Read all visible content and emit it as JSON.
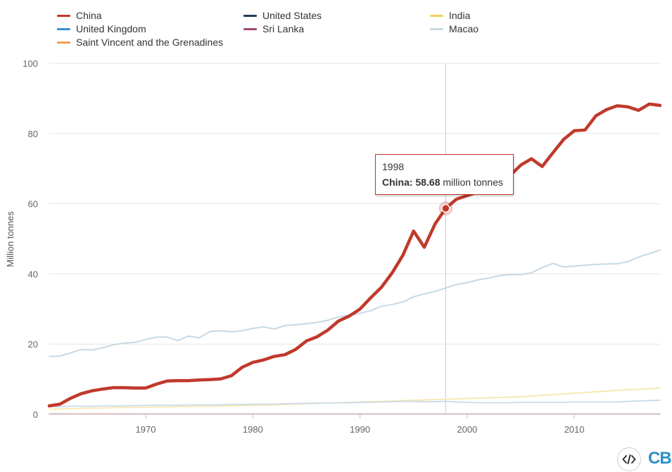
{
  "chart_data": {
    "type": "line",
    "ylabel": "Million tonnes",
    "ylim": [
      0,
      100
    ],
    "yticks": [
      "0",
      "20",
      "40",
      "60",
      "80",
      "100"
    ],
    "xlim": [
      1961,
      2018
    ],
    "xticks": [
      "1970",
      "1980",
      "1990",
      "2000",
      "2010"
    ],
    "x": [
      1961,
      1962,
      1963,
      1964,
      1965,
      1966,
      1967,
      1968,
      1969,
      1970,
      1971,
      1972,
      1973,
      1974,
      1975,
      1976,
      1977,
      1978,
      1979,
      1980,
      1981,
      1982,
      1983,
      1984,
      1985,
      1986,
      1987,
      1988,
      1989,
      1990,
      1991,
      1992,
      1993,
      1994,
      1995,
      1996,
      1997,
      1998,
      1999,
      2000,
      2001,
      2002,
      2003,
      2004,
      2005,
      2006,
      2007,
      2008,
      2009,
      2010,
      2011,
      2012,
      2013,
      2014,
      2015,
      2016,
      2017,
      2018
    ],
    "series": [
      {
        "name": "Macao",
        "color": "#c6d9e4",
        "width": 2,
        "values": [
          16.5,
          16.6,
          17.5,
          18.5,
          18.3,
          19.0,
          19.8,
          20.3,
          20.5,
          21.3,
          22.0,
          22.0,
          21.0,
          22.3,
          21.8,
          23.6,
          23.8,
          23.5,
          23.8,
          24.5,
          24.9,
          24.3,
          25.3,
          25.5,
          25.8,
          26.2,
          26.8,
          27.8,
          28.2,
          28.8,
          29.5,
          30.8,
          31.3,
          32.0,
          33.5,
          34.3,
          35.0,
          36.0,
          37.0,
          37.5,
          38.3,
          38.8,
          39.5,
          39.8,
          39.8,
          40.3,
          41.8,
          43.0,
          42.0,
          42.2,
          42.5,
          42.7,
          42.8,
          42.9,
          43.5,
          44.8,
          45.8,
          46.8
        ]
      },
      {
        "name": "India",
        "color": "#f7e7b0",
        "width": 1.8,
        "values": [
          1.5,
          1.5,
          1.6,
          1.7,
          1.8,
          1.8,
          1.9,
          1.9,
          2.0,
          2.0,
          2.1,
          2.1,
          2.2,
          2.2,
          2.3,
          2.3,
          2.4,
          2.4,
          2.5,
          2.5,
          2.6,
          2.7,
          2.8,
          2.9,
          3.0,
          3.1,
          3.2,
          3.3,
          3.4,
          3.5,
          3.6,
          3.7,
          3.8,
          3.9,
          4.0,
          4.1,
          4.2,
          4.3,
          4.4,
          4.5,
          4.6,
          4.7,
          4.8,
          4.9,
          5.0,
          5.2,
          5.4,
          5.6,
          5.8,
          6.0,
          6.2,
          6.4,
          6.6,
          6.8,
          7.0,
          7.1,
          7.3,
          7.5
        ]
      },
      {
        "name": "United Kingdom",
        "color": "#c8dceb",
        "width": 1.8,
        "values": [
          2.2,
          2.2,
          2.3,
          2.3,
          2.3,
          2.4,
          2.4,
          2.4,
          2.5,
          2.5,
          2.6,
          2.6,
          2.6,
          2.7,
          2.7,
          2.7,
          2.7,
          2.8,
          2.8,
          2.9,
          2.9,
          2.9,
          3.0,
          3.1,
          3.1,
          3.2,
          3.2,
          3.3,
          3.3,
          3.4,
          3.4,
          3.5,
          3.6,
          3.7,
          3.7,
          3.6,
          3.6,
          3.7,
          3.5,
          3.4,
          3.3,
          3.3,
          3.3,
          3.3,
          3.4,
          3.4,
          3.4,
          3.4,
          3.4,
          3.5,
          3.5,
          3.5,
          3.5,
          3.5,
          3.7,
          3.8,
          3.9,
          4.0
        ]
      },
      {
        "name": "Saint Vincent and the Grenadines",
        "color": "#f5dcc0",
        "width": 1.5,
        "values": [
          0.2,
          0.2,
          0.2,
          0.2,
          0.2,
          0.2,
          0.2,
          0.2,
          0.2,
          0.2,
          0.2,
          0.2,
          0.2,
          0.2,
          0.2,
          0.2,
          0.2,
          0.2,
          0.2,
          0.2,
          0.2,
          0.2,
          0.2,
          0.2,
          0.2,
          0.2,
          0.2,
          0.2,
          0.2,
          0.2,
          0.2,
          0.2,
          0.2,
          0.2,
          0.2,
          0.2,
          0.2,
          0.2,
          0.2,
          0.2,
          0.2,
          0.2,
          0.2,
          0.2,
          0.2,
          0.2,
          0.2,
          0.2,
          0.2,
          0.2,
          0.2,
          0.2,
          0.2,
          0.2,
          0.2,
          0.2,
          0.2,
          0.2
        ]
      },
      {
        "name": "United States",
        "color": "#b9c6d3",
        "width": 1.5,
        "values": [
          0.1,
          0.1,
          0.1,
          0.1,
          0.1,
          0.1,
          0.1,
          0.1,
          0.1,
          0.1,
          0.1,
          0.1,
          0.1,
          0.1,
          0.1,
          0.1,
          0.1,
          0.1,
          0.1,
          0.1,
          0.1,
          0.1,
          0.1,
          0.1,
          0.1,
          0.1,
          0.1,
          0.1,
          0.1,
          0.1,
          0.1,
          0.1,
          0.1,
          0.1,
          0.1,
          0.1,
          0.1,
          0.1,
          0.1,
          0.1,
          0.1,
          0.1,
          0.1,
          0.1,
          0.1,
          0.1,
          0.1,
          0.1,
          0.1,
          0.1,
          0.1,
          0.1,
          0.1,
          0.1,
          0.1,
          0.1,
          0.1,
          0.1
        ]
      },
      {
        "name": "Sri Lanka",
        "color": "#d8b9c6",
        "width": 1.5,
        "values": [
          0.05,
          0.05,
          0.05,
          0.05,
          0.05,
          0.05,
          0.05,
          0.05,
          0.05,
          0.05,
          0.05,
          0.05,
          0.05,
          0.05,
          0.05,
          0.05,
          0.05,
          0.05,
          0.05,
          0.05,
          0.05,
          0.05,
          0.05,
          0.05,
          0.05,
          0.05,
          0.05,
          0.05,
          0.05,
          0.05,
          0.05,
          0.05,
          0.05,
          0.05,
          0.05,
          0.05,
          0.05,
          0.05,
          0.05,
          0.05,
          0.05,
          0.05,
          0.05,
          0.05,
          0.05,
          0.05,
          0.05,
          0.05,
          0.05,
          0.05,
          0.05,
          0.05,
          0.05,
          0.05,
          0.05,
          0.05,
          0.05,
          0.05
        ]
      },
      {
        "name": "China",
        "color": "#c0392b",
        "width": 4.5,
        "values": [
          2.4,
          2.9,
          4.6,
          5.9,
          6.7,
          7.2,
          7.6,
          7.6,
          7.5,
          7.5,
          8.6,
          9.5,
          9.6,
          9.6,
          9.8,
          9.9,
          10.1,
          11.0,
          13.4,
          14.8,
          15.5,
          16.5,
          17.0,
          18.5,
          20.9,
          22.1,
          24.0,
          26.6,
          28.0,
          30.0,
          33.2,
          36.2,
          40.3,
          45.3,
          52.2,
          47.6,
          54.2,
          58.68,
          61.3,
          62.3,
          63.3,
          64.5,
          66.0,
          68.0,
          71.0,
          72.8,
          70.6,
          74.5,
          78.3,
          80.8,
          81.0,
          85.0,
          86.8,
          87.9,
          87.6,
          86.6,
          88.4,
          88.0
        ]
      }
    ],
    "highlight": {
      "x": 1998,
      "series": "China",
      "value": 58.68
    }
  },
  "legend": [
    {
      "name": "China",
      "color": "#c0392b"
    },
    {
      "name": "United States",
      "color": "#1f3c5a"
    },
    {
      "name": "India",
      "color": "#f1d45c"
    },
    {
      "name": "United Kingdom",
      "color": "#3a8fcf"
    },
    {
      "name": "Sri Lanka",
      "color": "#a04a73"
    },
    {
      "name": "Macao",
      "color": "#c6d9e4"
    },
    {
      "name": "Saint Vincent and the Grenadines",
      "color": "#e9a24b"
    }
  ],
  "tooltip": {
    "year": "1998",
    "label": "China: 58.68",
    "unit": " million tonnes"
  },
  "branding": {
    "logo_text": "CB",
    "embed_icon": "code-embed-icon"
  }
}
